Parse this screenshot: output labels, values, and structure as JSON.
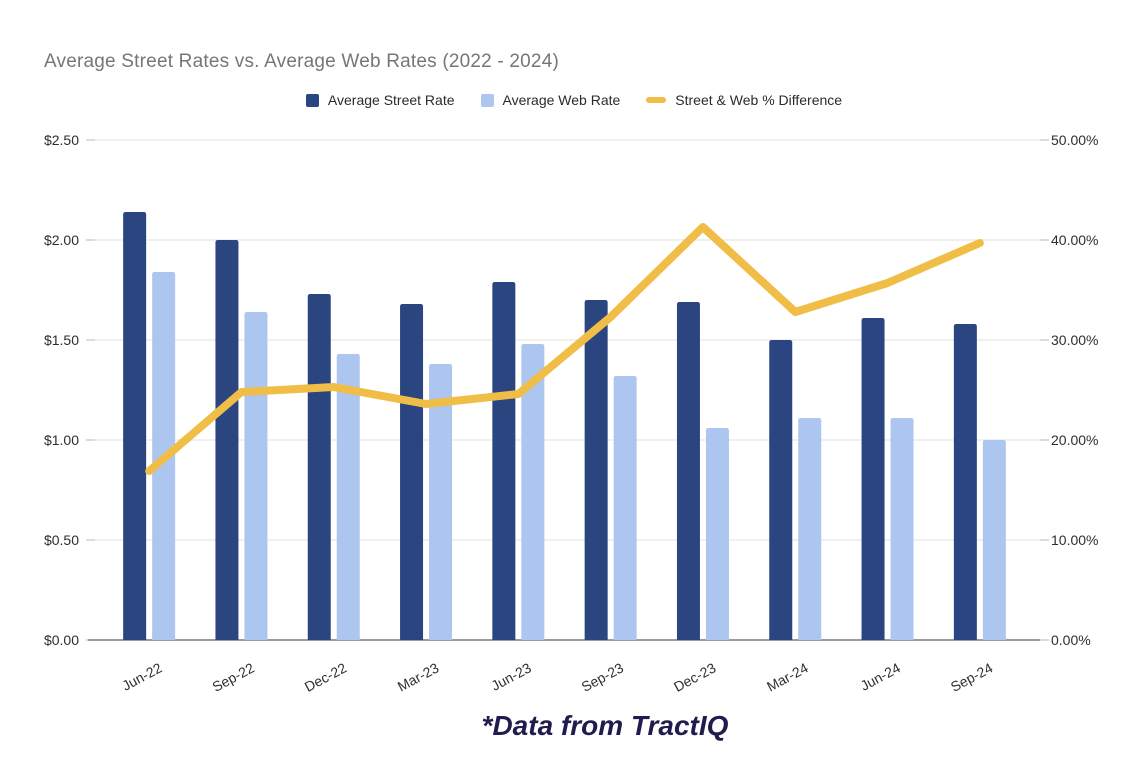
{
  "page": {
    "title": "Average Street Rates vs. Average Web Rates (2022 - 2024)",
    "footnote": "*Data from TractIQ"
  },
  "legend": [
    {
      "label": "Average Street Rate",
      "shape": "square",
      "color": "#2a4580"
    },
    {
      "label": "Average Web Rate",
      "shape": "square",
      "color": "#adc6ef"
    },
    {
      "label": "Street & Web % Difference",
      "shape": "line",
      "color": "#f0bd47"
    }
  ],
  "chart_data": {
    "type": "bar",
    "subtype": "grouped bars with overlay line, dual y-axes",
    "title": "Average Street Rates vs. Average Web Rates (2022 - 2024)",
    "annotation": "*Data from TractIQ",
    "grid": true,
    "legend_position": "top-center",
    "categories": [
      "Jun-22",
      "Sep-22",
      "Dec-22",
      "Mar-23",
      "Jun-23",
      "Sep-23",
      "Dec-23",
      "Mar-24",
      "Jun-24",
      "Sep-24"
    ],
    "series": [
      {
        "name": "Average Street Rate",
        "type": "bar",
        "axis": "left",
        "color": "#2a4580",
        "values": [
          2.14,
          2.0,
          1.73,
          1.68,
          1.79,
          1.7,
          1.69,
          1.5,
          1.61,
          1.58
        ]
      },
      {
        "name": "Average Web Rate",
        "type": "bar",
        "axis": "left",
        "color": "#adc6ef",
        "values": [
          1.84,
          1.64,
          1.43,
          1.38,
          1.48,
          1.32,
          1.06,
          1.11,
          1.11,
          1.0
        ]
      },
      {
        "name": "Street & Web % Difference",
        "type": "line",
        "axis": "right",
        "color": "#f0bd47",
        "values": [
          16.9,
          24.8,
          25.3,
          23.6,
          24.6,
          32.3,
          41.3,
          32.8,
          35.7,
          39.7
        ]
      }
    ],
    "left_axis": {
      "min": 0,
      "max": 2.5,
      "tick_values": [
        0,
        0.5,
        1.0,
        1.5,
        2.0,
        2.5
      ],
      "tick_labels": [
        "$0.00",
        "$0.50",
        "$1.00",
        "$1.50",
        "$2.00",
        "$2.50"
      ]
    },
    "right_axis": {
      "min": 0,
      "max": 50,
      "tick_values": [
        0,
        10,
        20,
        30,
        40,
        50
      ],
      "tick_labels": [
        "0.00%",
        "10.00%",
        "20.00%",
        "30.00%",
        "40.00%",
        "50.00%"
      ]
    }
  }
}
